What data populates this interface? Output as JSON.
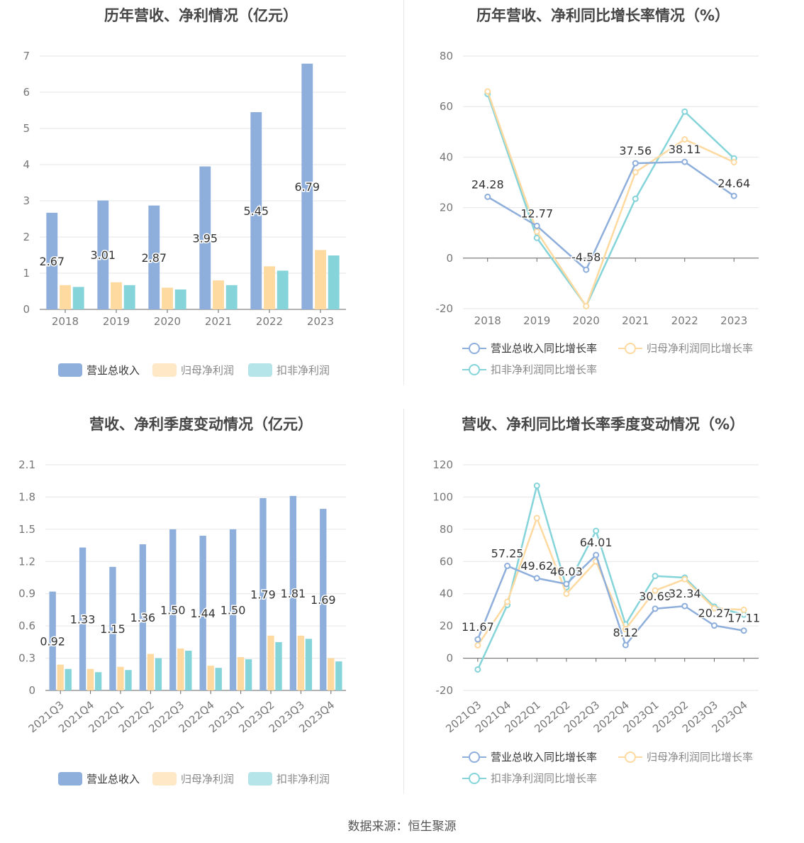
{
  "chart_data": [
    {
      "type": "bar",
      "title": "历年营收、净利情况（亿元）",
      "categories": [
        "2018",
        "2019",
        "2020",
        "2021",
        "2022",
        "2023"
      ],
      "ylim": [
        0,
        7
      ],
      "yticks": [
        "0",
        "1",
        "2",
        "3",
        "4",
        "5",
        "6",
        "7"
      ],
      "series": [
        {
          "name": "营业总收入",
          "color": "#8eaedb",
          "values": [
            2.67,
            3.01,
            2.87,
            3.95,
            5.45,
            6.79
          ],
          "labels": [
            "2.67",
            "3.01",
            "2.87",
            "3.95",
            "5.45",
            "6.79"
          ]
        },
        {
          "name": "归母净利润",
          "color": "#fed9a0",
          "values": [
            0.67,
            0.75,
            0.6,
            0.8,
            1.19,
            1.64
          ]
        },
        {
          "name": "扣非净利润",
          "color": "#84d4d9",
          "values": [
            0.62,
            0.67,
            0.55,
            0.67,
            1.07,
            1.49
          ]
        }
      ],
      "legend": "bottom"
    },
    {
      "type": "line",
      "title": "历年营收、净利同比增长率情况（%）",
      "categories": [
        "2018",
        "2019",
        "2020",
        "2021",
        "2022",
        "2023"
      ],
      "ylim": [
        -20,
        80
      ],
      "yticks": [
        "-20",
        "0",
        "20",
        "40",
        "60",
        "80"
      ],
      "series": [
        {
          "name": "营业总收入同比增长率",
          "color": "#8eaedb",
          "values": [
            24.28,
            12.77,
            -4.58,
            37.56,
            38.11,
            24.64
          ],
          "labels": [
            "24.28",
            "12.77",
            "-4.58",
            "37.56",
            "38.11",
            "24.64"
          ]
        },
        {
          "name": "归母净利润同比增长率",
          "color": "#fed9a0",
          "values": [
            66,
            10.5,
            -19,
            34,
            47,
            38
          ]
        },
        {
          "name": "扣非净利润同比增长率",
          "color": "#84d4d9",
          "values": [
            65,
            8,
            -19,
            23.5,
            58,
            39.5
          ]
        }
      ],
      "legend": "bottom"
    },
    {
      "type": "bar",
      "title": "营收、净利季度变动情况（亿元）",
      "categories": [
        "2021Q3",
        "2021Q4",
        "2022Q1",
        "2022Q2",
        "2022Q3",
        "2022Q4",
        "2023Q1",
        "2023Q2",
        "2023Q3",
        "2023Q4"
      ],
      "ylim": [
        0,
        2.1
      ],
      "yticks": [
        "0",
        "0.3",
        "0.6",
        "0.9",
        "1.2",
        "1.5",
        "1.8",
        "2.1"
      ],
      "series": [
        {
          "name": "营业总收入",
          "color": "#8eaedb",
          "values": [
            0.92,
            1.33,
            1.15,
            1.36,
            1.5,
            1.44,
            1.5,
            1.79,
            1.81,
            1.69
          ],
          "labels": [
            "0.92",
            "1.33",
            "1.15",
            "1.36",
            "1.50",
            "1.44",
            "1.50",
            "1.79",
            "1.81",
            "1.69"
          ]
        },
        {
          "name": "归母净利润",
          "color": "#fed9a0",
          "values": [
            0.24,
            0.2,
            0.22,
            0.34,
            0.39,
            0.23,
            0.31,
            0.51,
            0.51,
            0.3
          ]
        },
        {
          "name": "扣非净利润",
          "color": "#84d4d9",
          "values": [
            0.2,
            0.17,
            0.19,
            0.3,
            0.37,
            0.21,
            0.29,
            0.45,
            0.48,
            0.27
          ]
        }
      ],
      "legend": "bottom"
    },
    {
      "type": "line",
      "title": "营收、净利同比增长率季度变动情况（%）",
      "categories": [
        "2021Q3",
        "2021Q4",
        "2022Q1",
        "2022Q2",
        "2022Q3",
        "2022Q4",
        "2023Q1",
        "2023Q2",
        "2023Q3",
        "2023Q4"
      ],
      "ylim": [
        -20,
        120
      ],
      "yticks": [
        "-20",
        "0",
        "20",
        "40",
        "60",
        "80",
        "100",
        "120"
      ],
      "series": [
        {
          "name": "营业总收入同比增长率",
          "color": "#8eaedb",
          "values": [
            11.67,
            57.25,
            49.62,
            46.03,
            64.01,
            8.12,
            30.69,
            32.34,
            20.27,
            17.11
          ],
          "labels": [
            "11.67",
            "57.25",
            "49.62",
            "46.03",
            "64.01",
            "8.12",
            "30.69",
            "32.34",
            "20.27",
            "17.11"
          ]
        },
        {
          "name": "归母净利润同比增长率",
          "color": "#fed9a0",
          "values": [
            8,
            35,
            87,
            40,
            60,
            18,
            42,
            49,
            31,
            30
          ]
        },
        {
          "name": "扣非净利润同比增长率",
          "color": "#84d4d9",
          "values": [
            -7,
            33,
            107,
            44,
            79,
            21,
            51,
            50,
            32,
            27
          ]
        }
      ],
      "legend": "bottom"
    }
  ],
  "footer": {
    "source": "数据来源：恒生聚源"
  }
}
